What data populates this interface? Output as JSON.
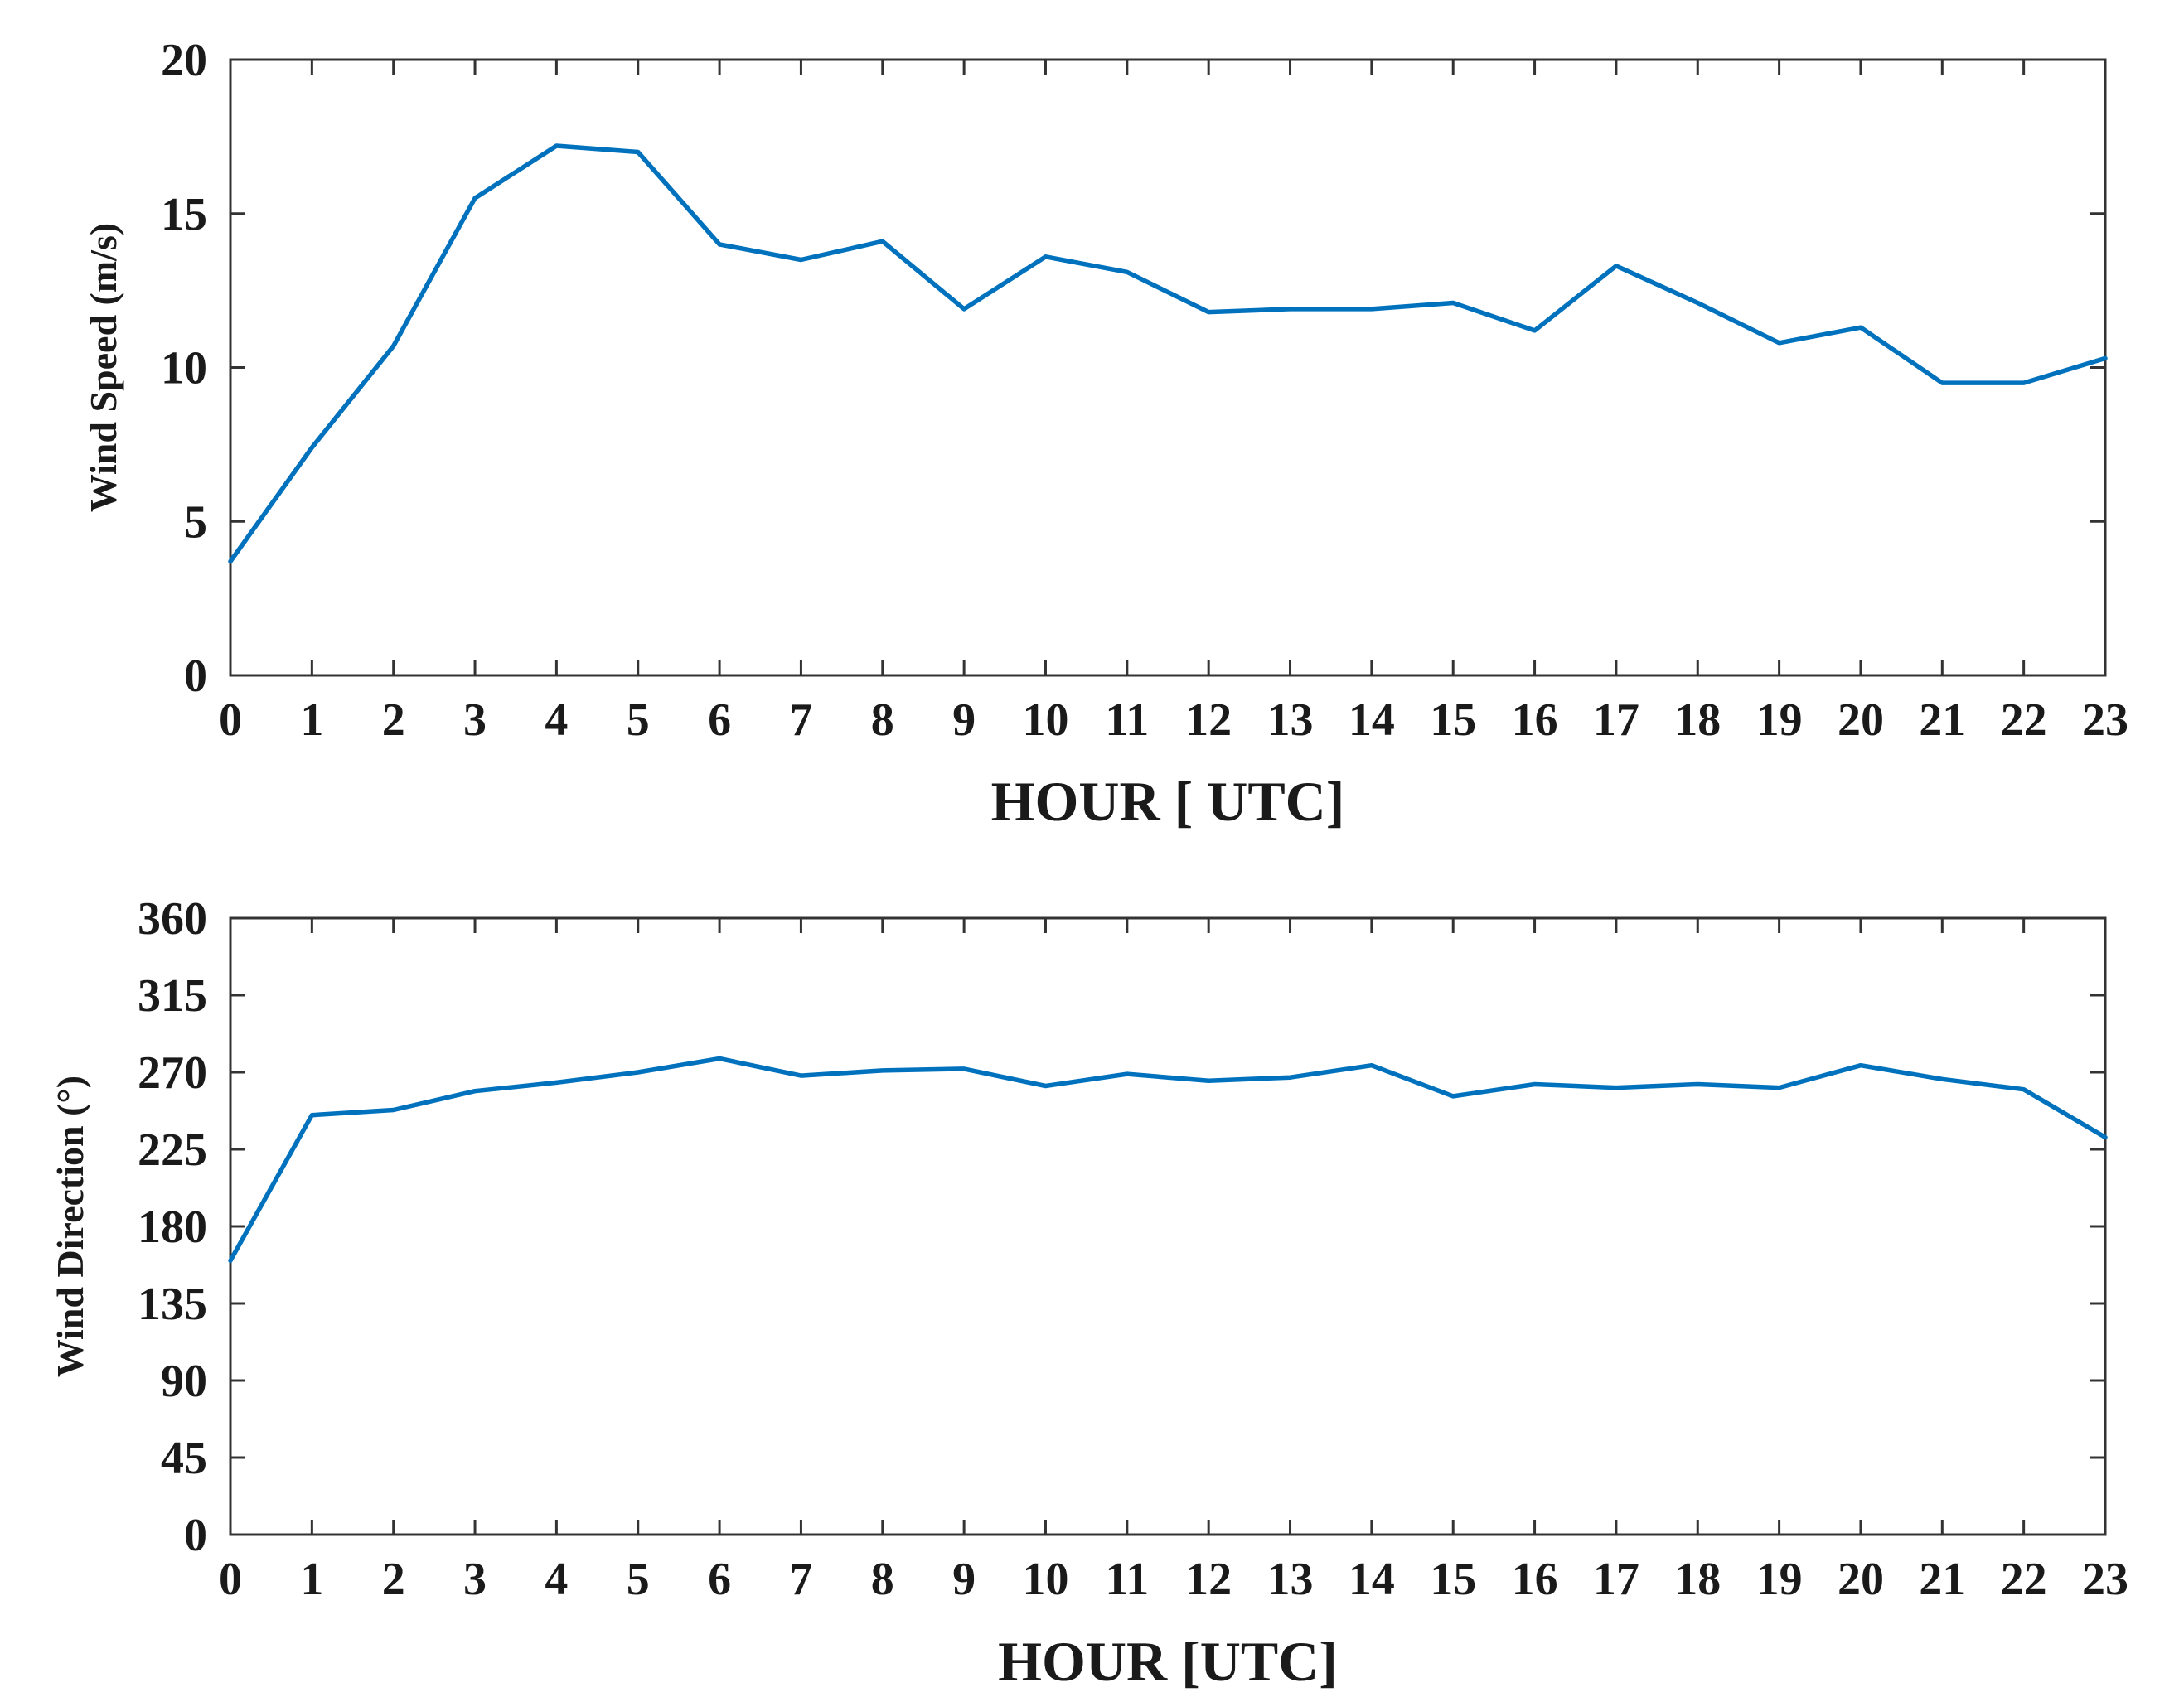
{
  "chart_data": [
    {
      "type": "line",
      "title": "",
      "xlabel": "HOUR [ UTC]",
      "ylabel": "Wind Speed (m/s)",
      "xlim": [
        0,
        23
      ],
      "ylim": [
        0,
        20
      ],
      "x_ticks": [
        0,
        1,
        2,
        3,
        4,
        5,
        6,
        7,
        8,
        9,
        10,
        11,
        12,
        13,
        14,
        15,
        16,
        17,
        18,
        19,
        20,
        21,
        22,
        23
      ],
      "y_ticks": [
        0,
        5,
        10,
        15,
        20
      ],
      "grid": false,
      "color": "#0072BD",
      "x": [
        0,
        1,
        2,
        3,
        4,
        5,
        6,
        7,
        8,
        9,
        10,
        11,
        12,
        13,
        14,
        15,
        16,
        17,
        18,
        19,
        20,
        21,
        22,
        23
      ],
      "values": [
        3.7,
        7.4,
        10.7,
        15.5,
        17.2,
        17.0,
        14.0,
        13.5,
        14.1,
        11.9,
        13.6,
        13.1,
        11.8,
        11.9,
        11.9,
        12.1,
        11.2,
        13.3,
        12.1,
        10.8,
        11.3,
        9.5,
        9.5,
        10.3
      ]
    },
    {
      "type": "line",
      "title": "",
      "xlabel": "HOUR [UTC]",
      "ylabel": "Wind Direction (°)",
      "xlim": [
        0,
        23
      ],
      "ylim": [
        0,
        360
      ],
      "x_ticks": [
        0,
        1,
        2,
        3,
        4,
        5,
        6,
        7,
        8,
        9,
        10,
        11,
        12,
        13,
        14,
        15,
        16,
        17,
        18,
        19,
        20,
        21,
        22,
        23
      ],
      "y_ticks": [
        0,
        45,
        90,
        135,
        180,
        225,
        270,
        315,
        360
      ],
      "grid": false,
      "color": "#0072BD",
      "x": [
        0,
        1,
        2,
        3,
        4,
        5,
        6,
        7,
        8,
        9,
        10,
        11,
        12,
        13,
        14,
        15,
        16,
        17,
        18,
        19,
        20,
        21,
        22,
        23
      ],
      "values": [
        160,
        245,
        248,
        259,
        264,
        270,
        278,
        268,
        271,
        272,
        262,
        269,
        265,
        267,
        274,
        256,
        263,
        261,
        263,
        261,
        274,
        266,
        260,
        232
      ]
    }
  ]
}
